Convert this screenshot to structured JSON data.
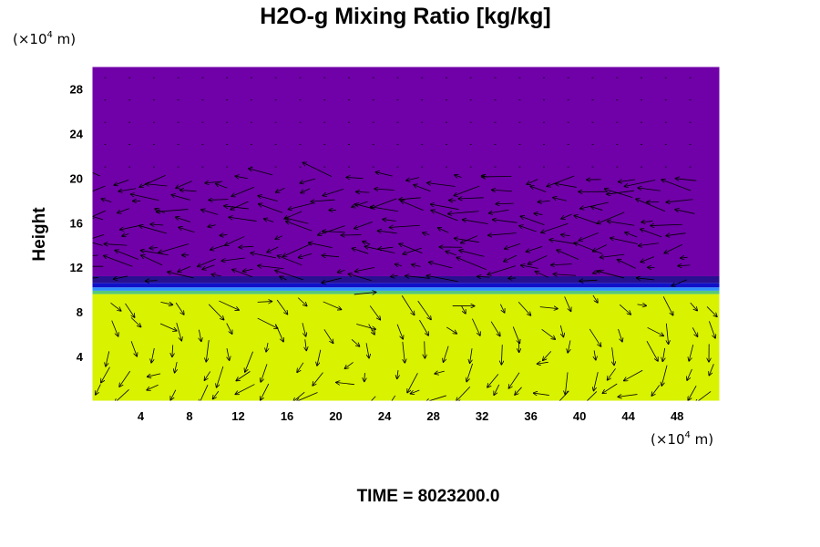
{
  "chart_data": {
    "type": "heatmap",
    "title": "H2O-g Mixing Ratio [kg/kg]",
    "xlabel": "",
    "ylabel": "Height",
    "x_unit_prefix": "(×10",
    "x_unit_exp": "4",
    "x_unit_suffix": " m)",
    "y_unit_prefix": "(×10",
    "y_unit_exp": "4",
    "y_unit_suffix": " m)",
    "xlim": [
      0,
      51.5
    ],
    "ylim": [
      0,
      30
    ],
    "x_ticks": [
      4,
      8,
      12,
      16,
      20,
      24,
      28,
      32,
      36,
      40,
      44,
      48
    ],
    "y_ticks": [
      4,
      8,
      12,
      16,
      20,
      24,
      28
    ],
    "x_tick_labels": [
      "4",
      "8",
      "12",
      "16",
      "20",
      "24",
      "28",
      "32",
      "36",
      "40",
      "44",
      "48"
    ],
    "y_tick_labels": [
      "4",
      "8",
      "12",
      "16",
      "20",
      "24",
      "28"
    ],
    "field_bands": [
      {
        "from": 0,
        "to": 9.6,
        "color": "#d8f200"
      },
      {
        "from": 9.6,
        "to": 9.9,
        "color": "#55c87a"
      },
      {
        "from": 9.9,
        "to": 10.2,
        "color": "#2f8fff"
      },
      {
        "from": 10.2,
        "to": 10.6,
        "color": "#1010c8"
      },
      {
        "from": 10.6,
        "to": 11.2,
        "color": "#281090"
      },
      {
        "from": 11.2,
        "to": 30,
        "color": "#7000a8"
      }
    ],
    "lower_cells_x": [
      2,
      6,
      10,
      14,
      18,
      22,
      26,
      30,
      34,
      38,
      42,
      46,
      50
    ],
    "lower_cells_y": [
      1,
      3,
      5,
      7,
      9
    ],
    "upper_rows_y": [
      11,
      12,
      13,
      14,
      15,
      16,
      17,
      18,
      19,
      20
    ],
    "vector_color": "#000000",
    "footer_label": "TIME = ",
    "time_value": "8023200.0"
  }
}
